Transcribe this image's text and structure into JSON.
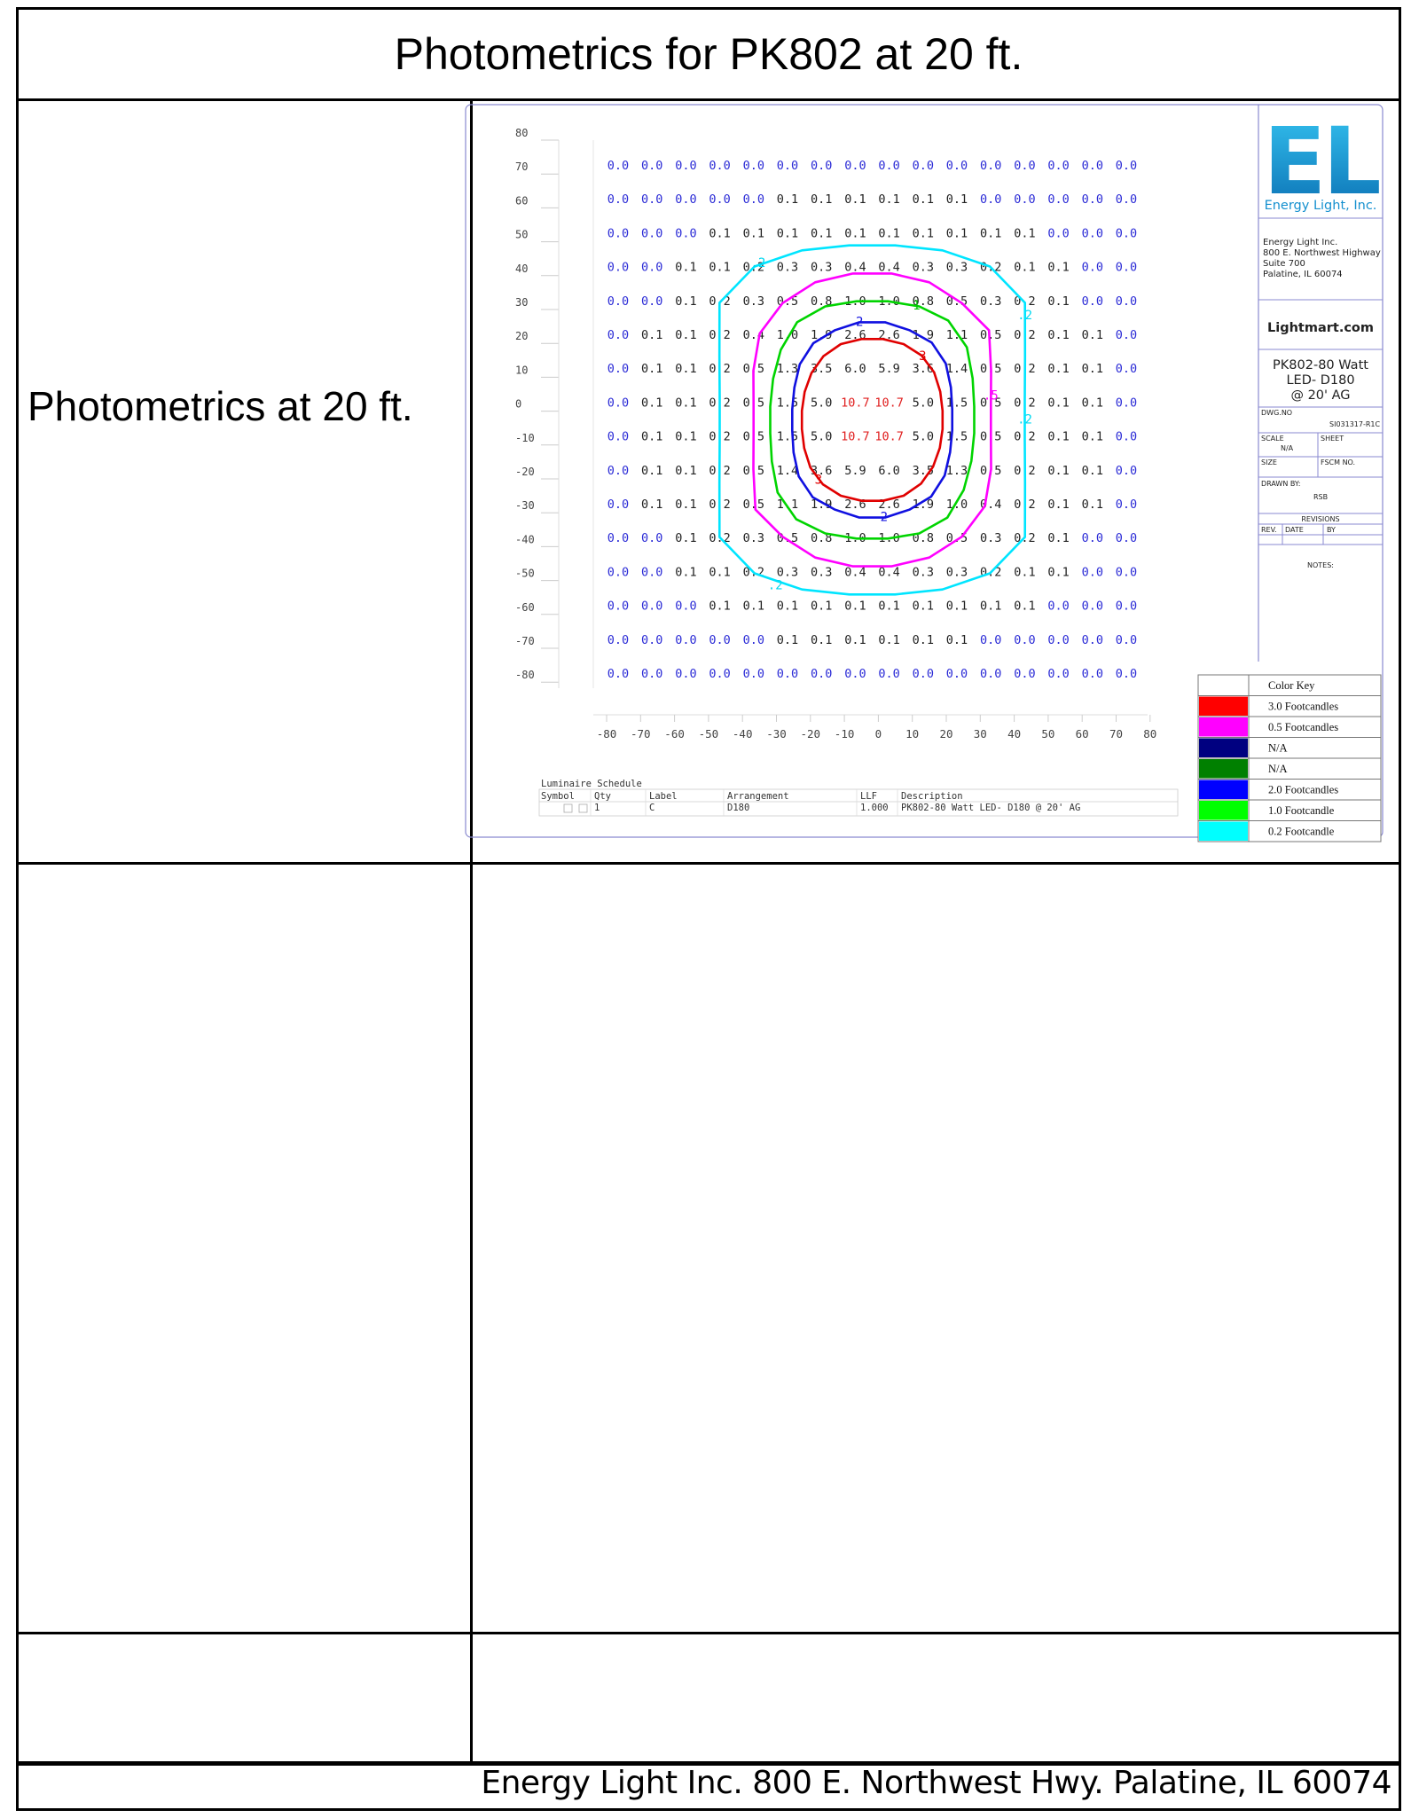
{
  "document": {
    "title": "Photometrics for PK802 at 20 ft.",
    "left_label": "Photometrics at 20 ft.",
    "footer": "Energy Light Inc. 800 E. Northwest Hwy. Palatine, IL 60074"
  },
  "grid": {
    "y_labels": [
      "80",
      "70",
      "60",
      "50",
      "40",
      "30",
      "20",
      "10",
      "0",
      "-10",
      "-20",
      "-30",
      "-40",
      "-50",
      "-60",
      "-70",
      "-80"
    ],
    "x_labels": [
      "-80",
      "-70",
      "-60",
      "-50",
      "-40",
      "-30",
      "-20",
      "-10",
      "0",
      "10",
      "20",
      "30",
      "40",
      "50",
      "60",
      "70",
      "80"
    ],
    "rows": [
      [
        "0.0",
        "0.0",
        "0.0",
        "0.0",
        "0.0",
        "0.0",
        "0.0",
        "0.0",
        "0.0",
        "0.0",
        "0.0",
        "0.0",
        "0.0",
        "0.0",
        "0.0",
        "0.0"
      ],
      [
        "0.0",
        "0.0",
        "0.0",
        "0.0",
        "0.0",
        "0.1",
        "0.1",
        "0.1",
        "0.1",
        "0.1",
        "0.1",
        "0.0",
        "0.0",
        "0.0",
        "0.0",
        "0.0"
      ],
      [
        "0.0",
        "0.0",
        "0.0",
        "0.1",
        "0.1",
        "0.1",
        "0.1",
        "0.1",
        "0.1",
        "0.1",
        "0.1",
        "0.1",
        "0.1",
        "0.0",
        "0.0",
        "0.0"
      ],
      [
        "0.0",
        "0.0",
        "0.1",
        "0.1",
        "0.2",
        "0.3",
        "0.3",
        "0.4",
        "0.4",
        "0.3",
        "0.3",
        "0.2",
        "0.1",
        "0.1",
        "0.0",
        "0.0"
      ],
      [
        "0.0",
        "0.0",
        "0.1",
        "0.2",
        "0.3",
        "0.5",
        "0.8",
        "1.0",
        "1.0",
        "0.8",
        "0.5",
        "0.3",
        "0.2",
        "0.1",
        "0.0",
        "0.0"
      ],
      [
        "0.0",
        "0.1",
        "0.1",
        "0.2",
        "0.4",
        "1.0",
        "1.9",
        "2.6",
        "2.6",
        "1.9",
        "1.1",
        "0.5",
        "0.2",
        "0.1",
        "0.1",
        "0.0"
      ],
      [
        "0.0",
        "0.1",
        "0.1",
        "0.2",
        "0.5",
        "1.3",
        "3.5",
        "6.0",
        "5.9",
        "3.6",
        "1.4",
        "0.5",
        "0.2",
        "0.1",
        "0.1",
        "0.0"
      ],
      [
        "0.0",
        "0.1",
        "0.1",
        "0.2",
        "0.5",
        "1.5",
        "5.0",
        "10.7",
        "10.7",
        "5.0",
        "1.5",
        "0.5",
        "0.2",
        "0.1",
        "0.1",
        "0.0"
      ],
      [
        "0.0",
        "0.1",
        "0.1",
        "0.2",
        "0.5",
        "1.5",
        "5.0",
        "10.7",
        "10.7",
        "5.0",
        "1.5",
        "0.5",
        "0.2",
        "0.1",
        "0.1",
        "0.0"
      ],
      [
        "0.0",
        "0.1",
        "0.1",
        "0.2",
        "0.5",
        "1.4",
        "3.6",
        "5.9",
        "6.0",
        "3.5",
        "1.3",
        "0.5",
        "0.2",
        "0.1",
        "0.1",
        "0.0"
      ],
      [
        "0.0",
        "0.1",
        "0.1",
        "0.2",
        "0.5",
        "1.1",
        "1.9",
        "2.6",
        "2.6",
        "1.9",
        "1.0",
        "0.4",
        "0.2",
        "0.1",
        "0.1",
        "0.0"
      ],
      [
        "0.0",
        "0.0",
        "0.1",
        "0.2",
        "0.3",
        "0.5",
        "0.8",
        "1.0",
        "1.0",
        "0.8",
        "0.5",
        "0.3",
        "0.2",
        "0.1",
        "0.0",
        "0.0"
      ],
      [
        "0.0",
        "0.0",
        "0.1",
        "0.1",
        "0.2",
        "0.3",
        "0.3",
        "0.4",
        "0.4",
        "0.3",
        "0.3",
        "0.2",
        "0.1",
        "0.1",
        "0.0",
        "0.0"
      ],
      [
        "0.0",
        "0.0",
        "0.0",
        "0.1",
        "0.1",
        "0.1",
        "0.1",
        "0.1",
        "0.1",
        "0.1",
        "0.1",
        "0.1",
        "0.1",
        "0.0",
        "0.0",
        "0.0"
      ],
      [
        "0.0",
        "0.0",
        "0.0",
        "0.0",
        "0.0",
        "0.1",
        "0.1",
        "0.1",
        "0.1",
        "0.1",
        "0.1",
        "0.0",
        "0.0",
        "0.0",
        "0.0",
        "0.0"
      ],
      [
        "0.0",
        "0.0",
        "0.0",
        "0.0",
        "0.0",
        "0.0",
        "0.0",
        "0.0",
        "0.0",
        "0.0",
        "0.0",
        "0.0",
        "0.0",
        "0.0",
        "0.0",
        "0.0"
      ]
    ],
    "contour_labels": {
      "cyan": ".2",
      "green": "1",
      "blue": "2",
      "red": "3",
      "magenta": ".5"
    },
    "colors": {
      "zero": "#2b2bd6",
      "value": "#222222",
      "peak": "#e02020"
    }
  },
  "contours": [
    {
      "name": "0.2 Footcandle",
      "color": "#00e5ff"
    },
    {
      "name": "0.5 Footcandles",
      "color": "#ff00ff"
    },
    {
      "name": "1.0 Footcandle",
      "color": "#00d400"
    },
    {
      "name": "2.0 Footcandles",
      "color": "#1010e0"
    },
    {
      "name": "3.0 Footcandles",
      "color": "#e00000"
    }
  ],
  "schedule": {
    "title": "Luminaire Schedule",
    "headers": [
      "Symbol",
      "Qty",
      "Label",
      "Arrangement",
      "LLF",
      "Description"
    ],
    "row": [
      "",
      "1",
      "C",
      "D180",
      "1.000",
      "PK802-80 Watt LED- D180 @ 20' AG"
    ]
  },
  "title_block": {
    "logo_text": "EL",
    "brand": "Energy Light, Inc.",
    "address": [
      "Energy Light Inc.",
      "800 E. Northwest Highway",
      "Suite 700",
      "Palatine, IL 60074"
    ],
    "website": "Lightmart.com",
    "product": [
      "PK802-80 Watt",
      "LED- D180",
      "@ 20' AG"
    ],
    "dwg_label": "DWG.NO",
    "dwg_value": "SI031317-R1C",
    "scale_label": "SCALE",
    "scale_value": "N/A",
    "sheet_label": "SHEET",
    "size_label": "SIZE",
    "fscm_label": "FSCM NO.",
    "drawn_label": "DRAWN BY:",
    "drawn_value": "RSB",
    "revisions_label": "REVISIONS",
    "rev_headers": [
      "REV.",
      "DATE",
      "BY"
    ],
    "notes_label": "NOTES:"
  },
  "color_key": {
    "title": "Color Key",
    "items": [
      {
        "color": "#ff0000",
        "label": "3.0 Footcandles"
      },
      {
        "color": "#ff00ff",
        "label": "0.5 Footcandles"
      },
      {
        "color": "#000080",
        "label": "N/A"
      },
      {
        "color": "#008000",
        "label": "N/A"
      },
      {
        "color": "#0000ff",
        "label": "2.0 Footcandles"
      },
      {
        "color": "#00ff00",
        "label": "1.0 Footcandle"
      },
      {
        "color": "#00ffff",
        "label": "0.2 Footcandle"
      }
    ]
  }
}
